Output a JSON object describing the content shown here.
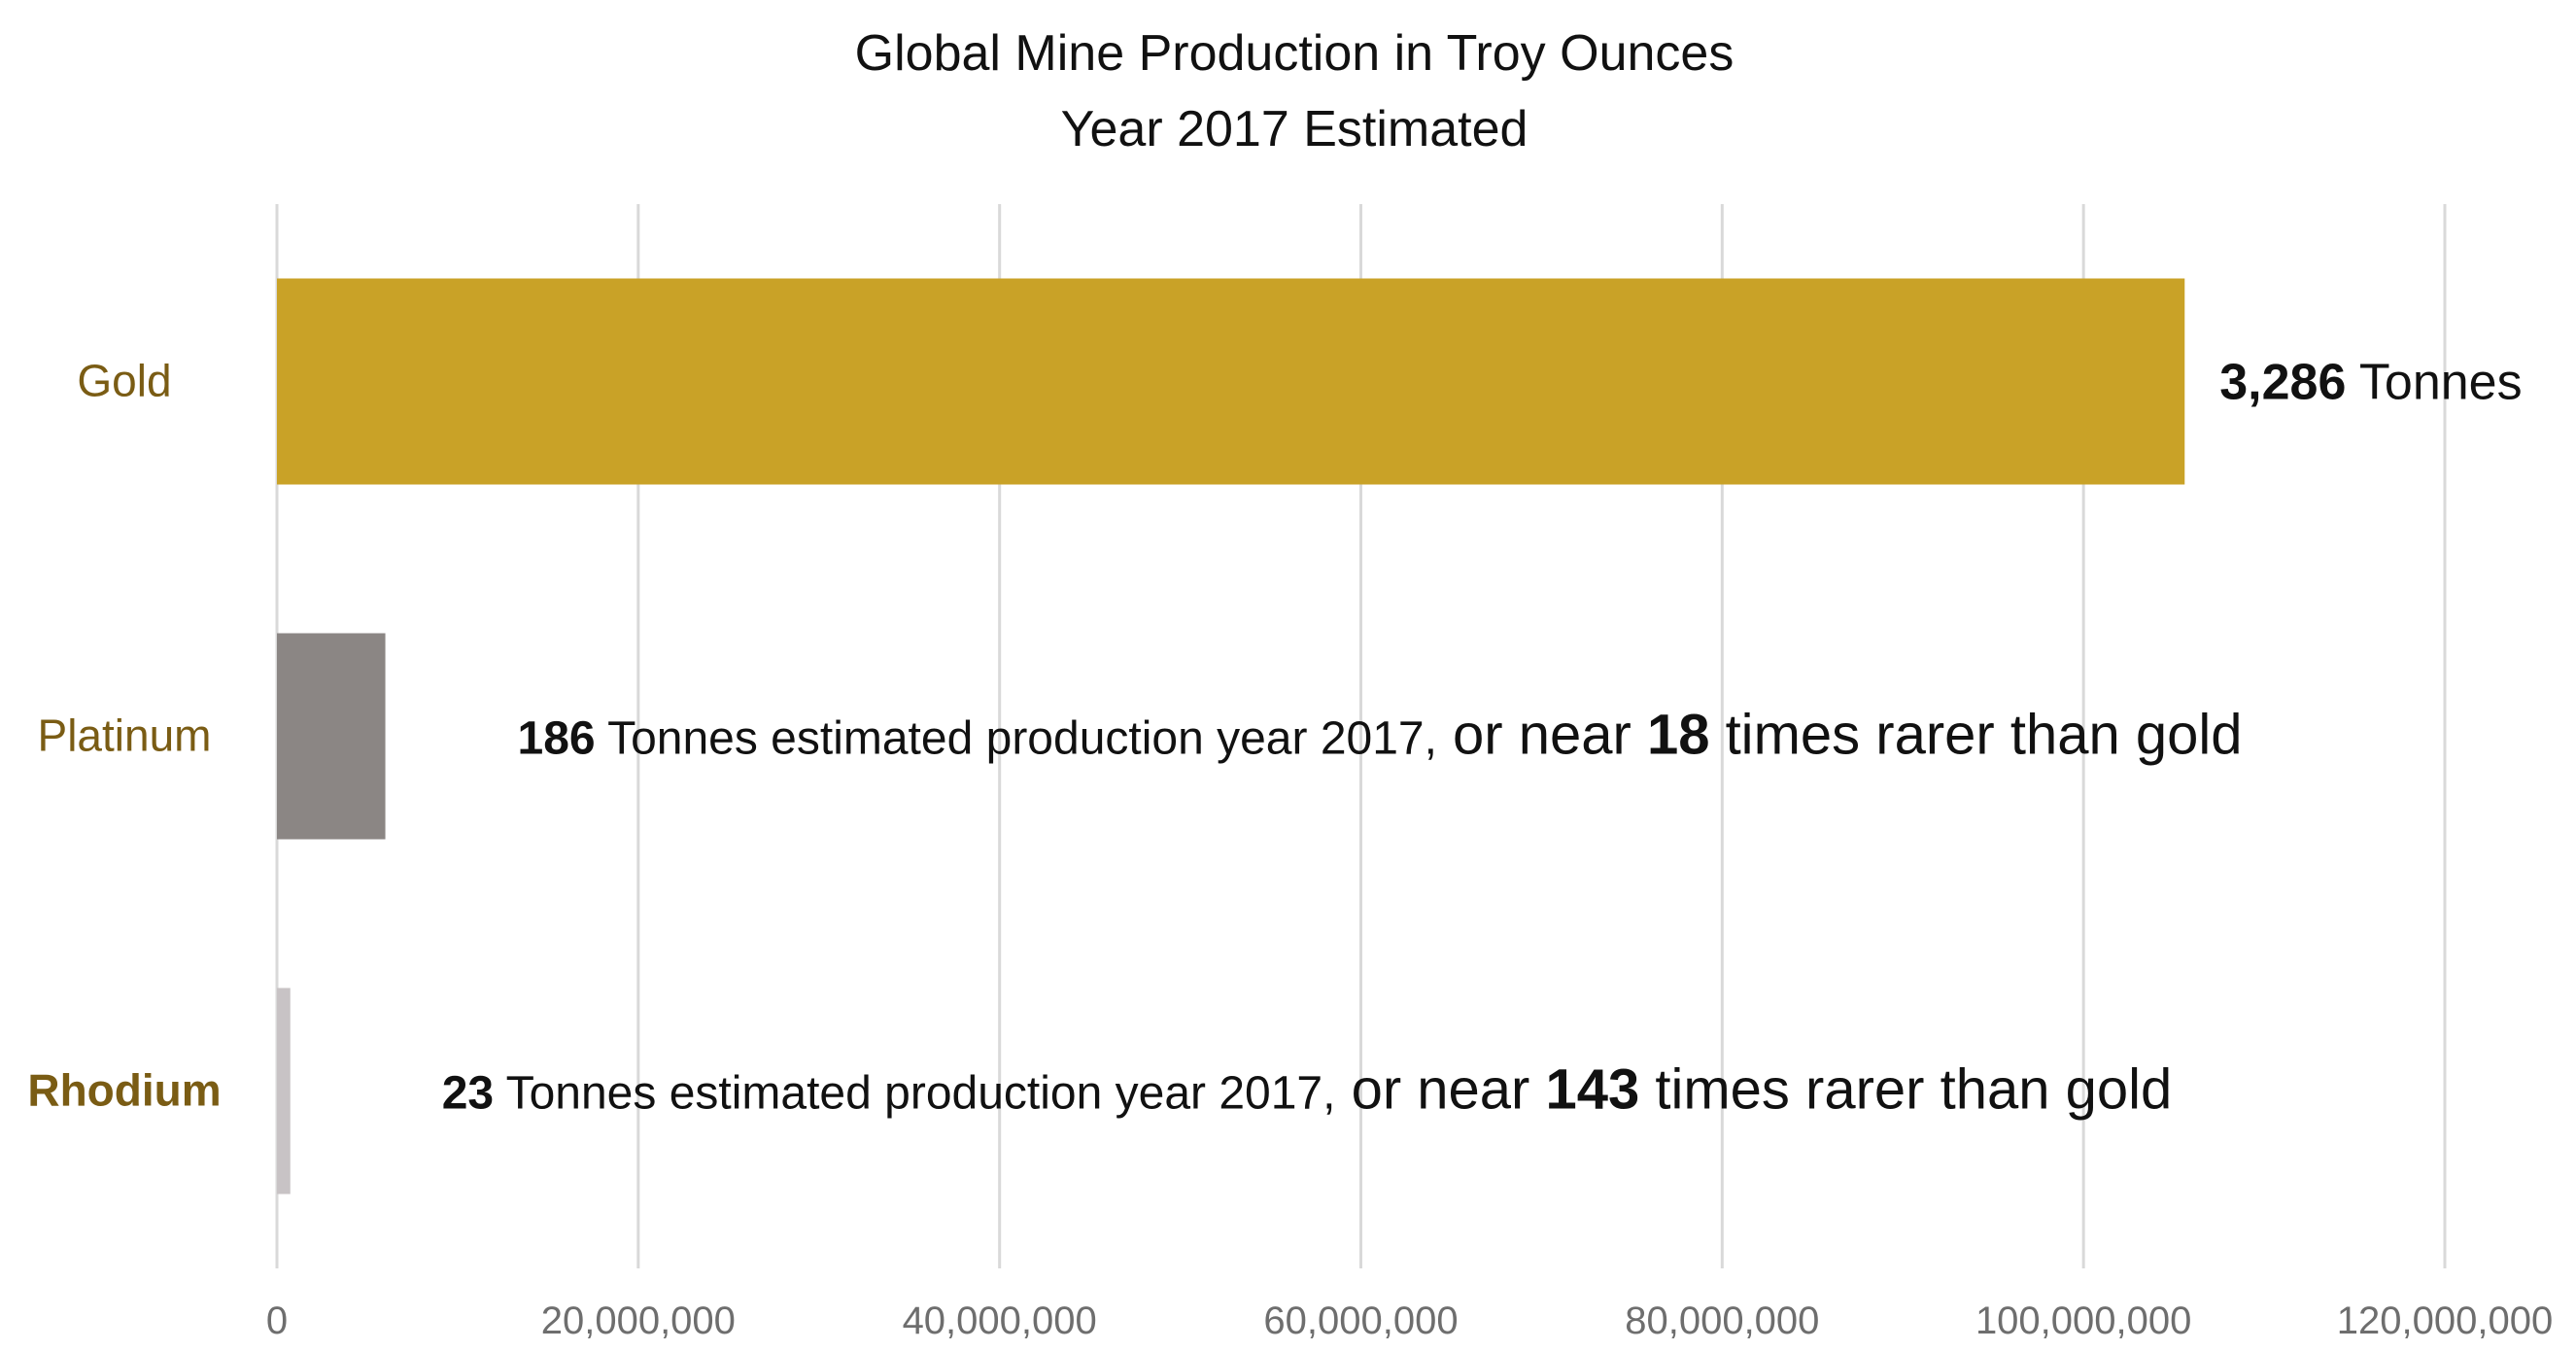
{
  "chart_data": {
    "type": "bar",
    "orientation": "horizontal",
    "title": "Global Mine Production in Troy Ounces",
    "subtitle": "Year 2017 Estimated",
    "xlabel": "",
    "ylabel": "",
    "categories": [
      "Gold",
      "Platinum",
      "Rhodium"
    ],
    "values": [
      105600000,
      6000000,
      740000
    ],
    "xlim": [
      0,
      120000000
    ],
    "x_ticks": [
      "0",
      "20,000,000",
      "40,000,000",
      "60,000,000",
      "80,000,000",
      "100,000,000",
      "120,000,000"
    ],
    "grid": "vertical",
    "legend": "none",
    "colors": {
      "Gold": "#c9a227",
      "Platinum": "#8b8684",
      "Rhodium": "#c8c3c5",
      "category_label": "#7a5c14"
    },
    "annotations": [
      {
        "bar": "Gold",
        "bold": "3,286",
        "text": " Tonnes"
      },
      {
        "bar": "Platinum",
        "bold": "186",
        "text": " Tonnes estimated production year 2017,",
        "suffix": " or near ",
        "bold2": "18",
        "tail": " times rarer than gold"
      },
      {
        "bar": "Rhodium",
        "bold": "23",
        "text": " Tonnes estimated production year 2017,",
        "suffix": " or near ",
        "bold2": "143",
        "tail": " times rarer than gold"
      }
    ]
  }
}
